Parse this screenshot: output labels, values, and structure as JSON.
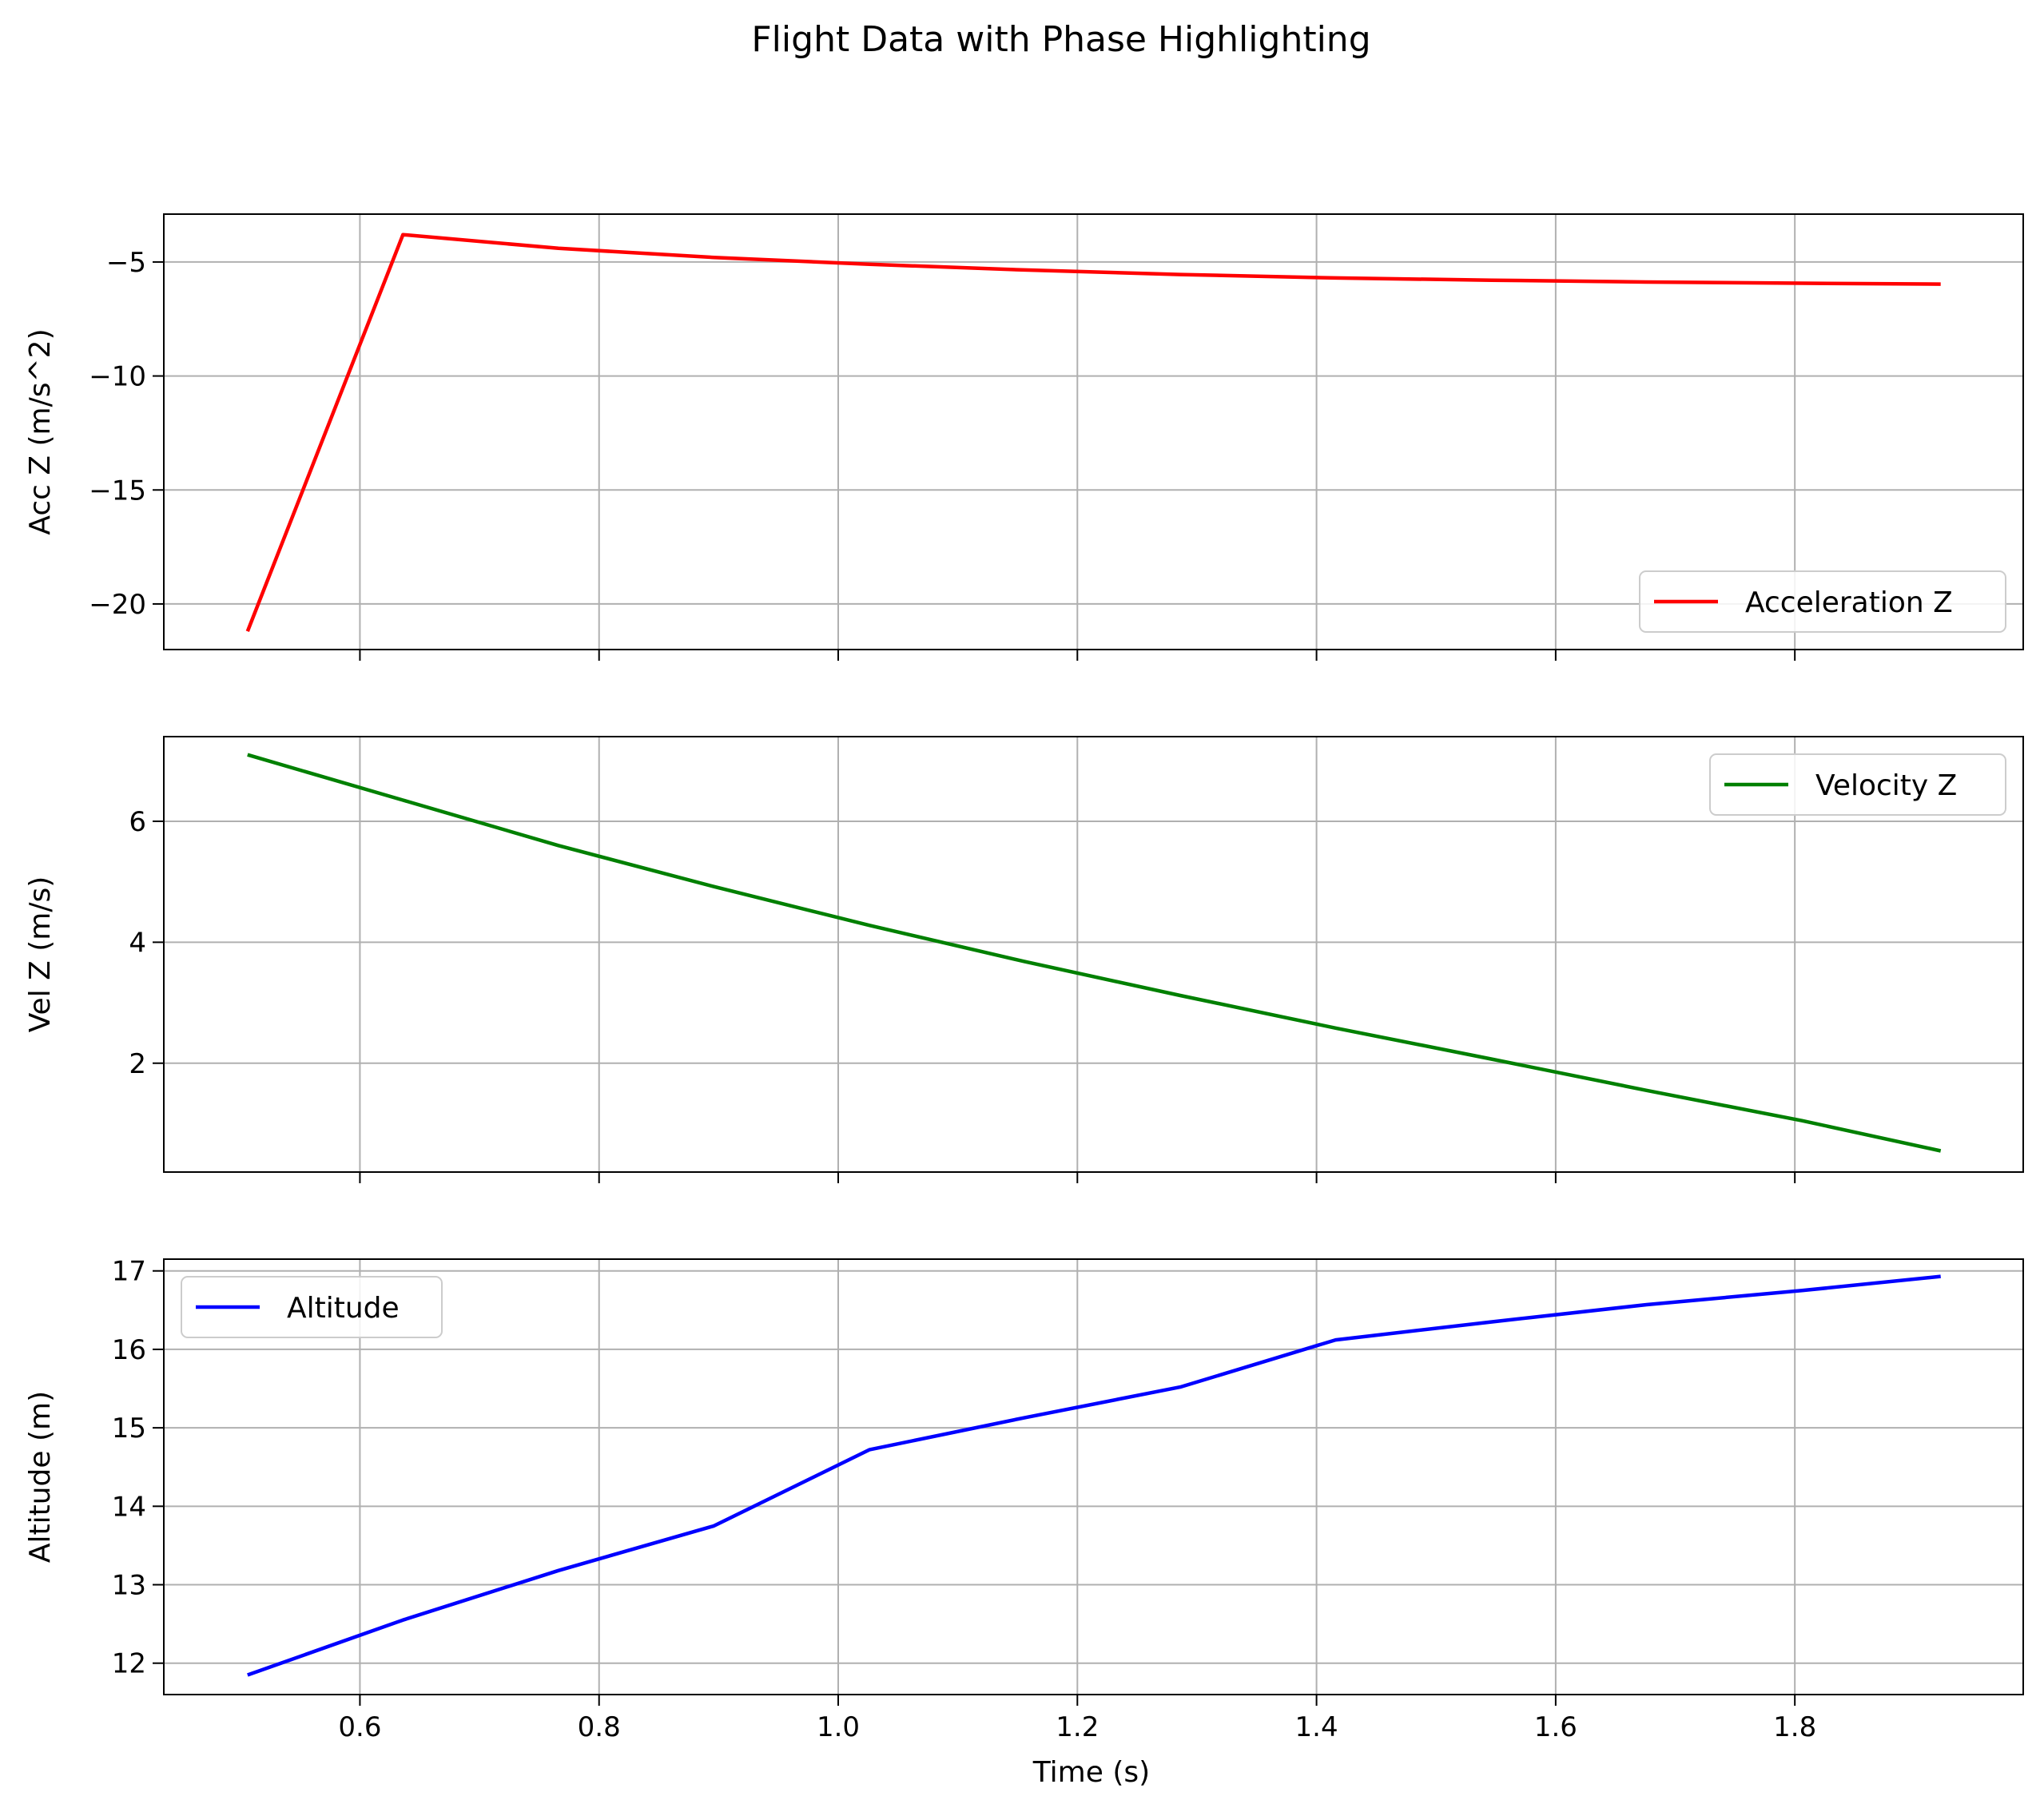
{
  "chart_data": {
    "type": "line",
    "title": "Flight Data with Phase Highlighting",
    "xlabel": "Time (s)",
    "xlim": [
      0.436,
      1.991
    ],
    "xticks": [
      0.6,
      0.8,
      1.0,
      1.2,
      1.4,
      1.6,
      1.8
    ],
    "xtick_labels": [
      "0.6",
      "0.8",
      "1.0",
      "1.2",
      "1.4",
      "1.6",
      "1.8"
    ],
    "grid": true,
    "panels": [
      {
        "ylabel": "Acc Z (m/s^2)",
        "ylim": [
          -22.0,
          -2.9
        ],
        "yticks": [
          -20,
          -15,
          -10,
          -5
        ],
        "ytick_labels": [
          "−20",
          "−15",
          "−10",
          "−5"
        ],
        "legend_position": "bottom-right",
        "series": [
          {
            "name": "Acceleration Z",
            "color": "#ff0000",
            "x": [
              0.506,
              0.636,
              0.766,
              0.896,
              1.026,
              1.156,
              1.286,
              1.416,
              1.546,
              1.676,
              1.806,
              1.922
            ],
            "y": [
              -21.2,
              -3.8,
              -4.4,
              -4.8,
              -5.1,
              -5.35,
              -5.55,
              -5.7,
              -5.8,
              -5.88,
              -5.93,
              -5.97
            ]
          }
        ]
      },
      {
        "ylabel": "Vel Z (m/s)",
        "ylim": [
          0.2,
          7.4
        ],
        "yticks": [
          2,
          4,
          6
        ],
        "ytick_labels": [
          "2",
          "4",
          "6"
        ],
        "legend_position": "top-right",
        "series": [
          {
            "name": "Velocity Z",
            "color": "#008000",
            "x": [
              0.506,
              0.636,
              0.766,
              0.896,
              1.026,
              1.156,
              1.286,
              1.416,
              1.546,
              1.676,
              1.806,
              1.922
            ],
            "y": [
              7.1,
              6.35,
              5.6,
              4.92,
              4.28,
              3.68,
              3.12,
              2.58,
              2.07,
              1.55,
              1.05,
              0.55
            ]
          }
        ]
      },
      {
        "ylabel": "Altitude (m)",
        "ylim": [
          11.6,
          17.15
        ],
        "yticks": [
          12,
          13,
          14,
          15,
          16,
          17
        ],
        "ytick_labels": [
          "12",
          "13",
          "14",
          "15",
          "16",
          "17"
        ],
        "legend_position": "top-left",
        "series": [
          {
            "name": "Altitude",
            "color": "#0000ff",
            "x": [
              0.506,
              0.636,
              0.766,
              0.896,
              1.026,
              1.156,
              1.286,
              1.416,
              1.546,
              1.676,
              1.806,
              1.922
            ],
            "y": [
              11.85,
              12.55,
              13.18,
              13.75,
              14.72,
              15.13,
              15.52,
              16.12,
              16.35,
              16.57,
              16.75,
              16.93
            ]
          }
        ]
      }
    ]
  }
}
